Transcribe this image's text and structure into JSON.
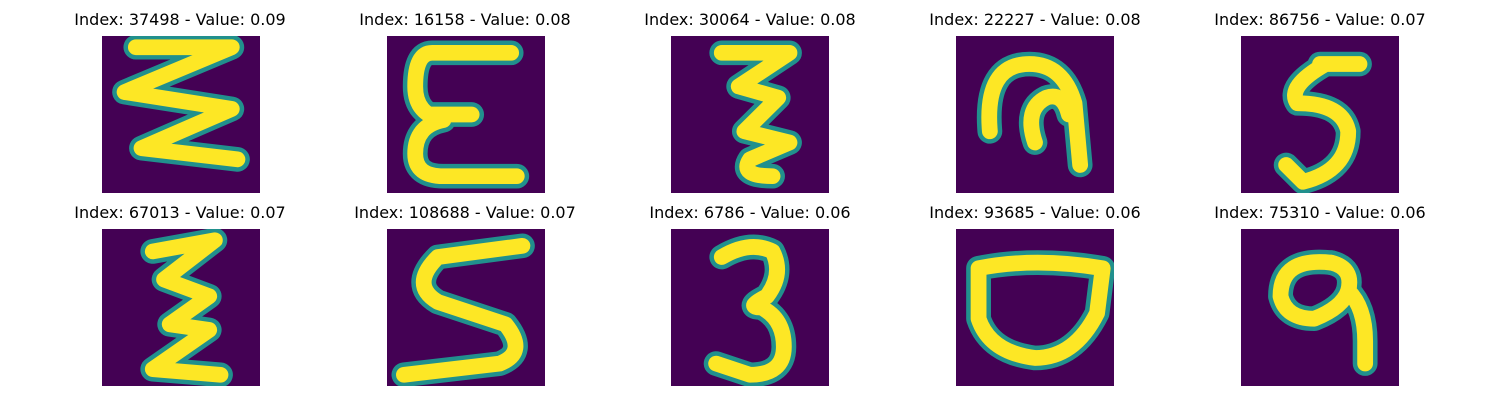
{
  "chart_data": {
    "type": "image-grid",
    "title": "",
    "colormap": "viridis",
    "colors": {
      "background": "#440154",
      "foreground": "#fde725",
      "edge": "#21908d"
    },
    "rows": 2,
    "columns": 5,
    "panels": [
      {
        "title": "Index: 37498 - Value: 0.09",
        "index": 37498,
        "value": 0.09,
        "glyph": "zigzag-triple"
      },
      {
        "title": "Index: 16158 - Value: 0.08",
        "index": 16158,
        "value": 0.08,
        "glyph": "epsilon-thick"
      },
      {
        "title": "Index: 30064 - Value: 0.08",
        "index": 30064,
        "value": 0.08,
        "glyph": "zeta-double"
      },
      {
        "title": "Index: 22227 - Value: 0.08",
        "index": 22227,
        "value": 0.08,
        "glyph": "hook-thick"
      },
      {
        "title": "Index: 86756 - Value: 0.07",
        "index": 86756,
        "value": 0.07,
        "glyph": "five-like"
      },
      {
        "title": "Index: 67013 - Value: 0.07",
        "index": 67013,
        "value": 0.07,
        "glyph": "zeta-tall"
      },
      {
        "title": "Index: 108688 - Value: 0.07",
        "index": 108688,
        "value": 0.07,
        "glyph": "s-wide"
      },
      {
        "title": "Index: 6786 - Value: 0.06",
        "index": 6786,
        "value": 0.06,
        "glyph": "three"
      },
      {
        "title": "Index: 93685 - Value: 0.06",
        "index": 93685,
        "value": 0.06,
        "glyph": "bowl"
      },
      {
        "title": "Index: 75310 - Value: 0.06",
        "index": 75310,
        "value": 0.06,
        "glyph": "nine-loop"
      }
    ]
  }
}
